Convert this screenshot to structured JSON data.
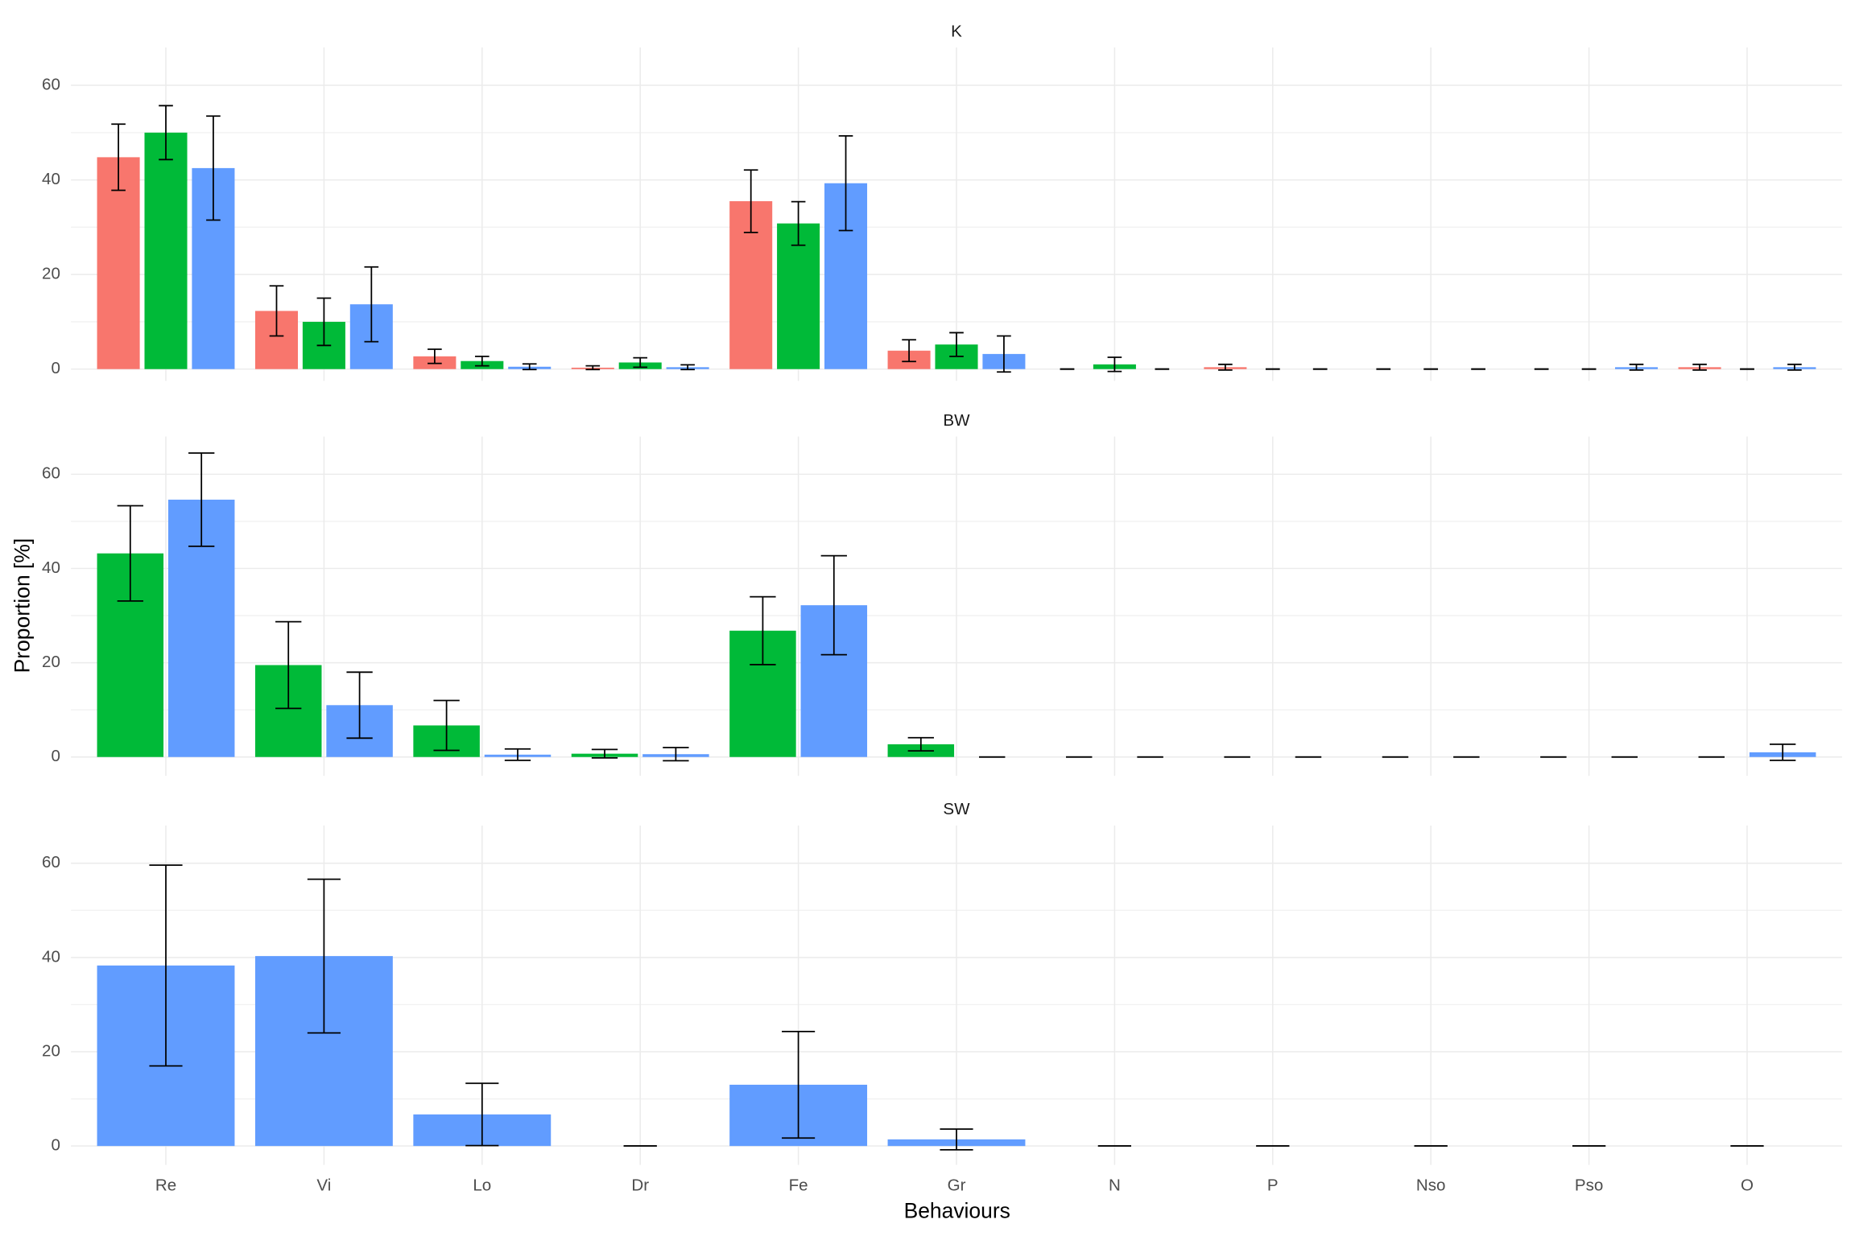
{
  "categories": [
    "Re",
    "Vi",
    "Lo",
    "Dr",
    "Fe",
    "Gr",
    "N",
    "P",
    "Nso",
    "Pso",
    "O"
  ],
  "xlabel": "Behaviours",
  "ylabel": "Proportion [%]",
  "chart_data": [
    {
      "type": "bar",
      "title": "K",
      "ylim": [
        -2.5,
        68
      ],
      "yticks": [
        0,
        20,
        40,
        60
      ],
      "minor_yticks": [
        10,
        30,
        50
      ],
      "grid": true,
      "series": [
        {
          "color": "#F8766D",
          "values": [
            44.8,
            12.3,
            2.7,
            0.3,
            35.5,
            3.9,
            0,
            0.4,
            0,
            0,
            0.4
          ],
          "errors": [
            7,
            5.3,
            1.5,
            0.4,
            6.6,
            2.3,
            0,
            0.6,
            0,
            0,
            0.6
          ]
        },
        {
          "color": "#00BA38",
          "values": [
            50,
            10,
            1.7,
            1.4,
            30.8,
            5.2,
            1,
            0,
            0,
            0,
            0
          ],
          "errors": [
            5.7,
            5,
            1,
            1,
            4.6,
            2.5,
            1.5,
            0,
            0,
            0,
            0
          ]
        },
        {
          "color": "#619CFF",
          "values": [
            42.5,
            13.7,
            0.5,
            0.4,
            39.3,
            3.2,
            0,
            0,
            0,
            0.4,
            0.4
          ],
          "errors": [
            11,
            7.9,
            0.6,
            0.5,
            10,
            3.8,
            0,
            0,
            0,
            0.6,
            0.6
          ]
        }
      ]
    },
    {
      "type": "bar",
      "title": "BW",
      "ylim": [
        -4,
        68
      ],
      "yticks": [
        0,
        20,
        40,
        60
      ],
      "minor_yticks": [
        10,
        30,
        50
      ],
      "grid": true,
      "series": [
        {
          "color": "#00BA38",
          "values": [
            43.2,
            19.5,
            6.7,
            0.7,
            26.8,
            2.7,
            0,
            0,
            0,
            0,
            0
          ],
          "errors": [
            10.1,
            9.2,
            5.3,
            0.9,
            7.2,
            1.4,
            0,
            0,
            0,
            0,
            0
          ]
        },
        {
          "color": "#619CFF",
          "values": [
            54.6,
            11,
            0.5,
            0.6,
            32.2,
            0,
            0,
            0,
            0,
            0,
            1
          ],
          "errors": [
            9.9,
            7,
            1.2,
            1.4,
            10.5,
            0,
            0,
            0,
            0,
            0,
            1.7
          ]
        }
      ]
    },
    {
      "type": "bar",
      "title": "SW",
      "ylim": [
        -4,
        68
      ],
      "yticks": [
        0,
        20,
        40,
        60
      ],
      "minor_yticks": [
        10,
        30,
        50
      ],
      "grid": true,
      "series": [
        {
          "color": "#619CFF",
          "values": [
            38.3,
            40.3,
            6.7,
            0,
            13,
            1.4,
            0,
            0,
            0,
            0,
            0
          ],
          "errors": [
            21.3,
            16.3,
            6.6,
            0,
            11.3,
            2.2,
            0,
            0,
            0,
            0,
            0
          ]
        }
      ]
    }
  ]
}
